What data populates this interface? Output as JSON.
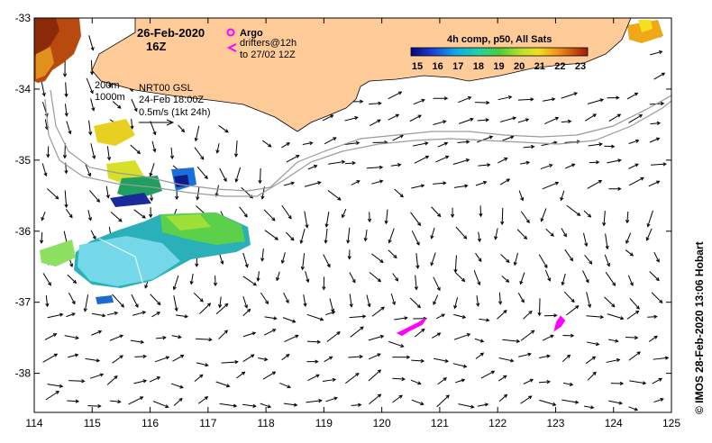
{
  "map": {
    "date": "26-Feb-2020",
    "time": "16Z",
    "isobath_labels": [
      "200m",
      "1000m"
    ],
    "current_product": "NRT00 GSL",
    "current_time": "24-Feb 18:00Z",
    "vector_scale": "0.5m/s (1kt 24h)",
    "legend": {
      "argo_label": "Argo",
      "drifters_label": "drifters@12h",
      "drifters_range": "to 27/02 12Z",
      "argo_color": "#ff00ff"
    },
    "sst_colorbar": {
      "title": "4h comp, p50, All Sats",
      "ticks": [
        15,
        16,
        17,
        18,
        19,
        20,
        21,
        22,
        23
      ]
    },
    "credit": "© IMOS 28-Feb-2020 13:06 Hobart",
    "land_color": "#ffcc99",
    "drifter_color": "#ff00ff"
  },
  "chart_data": {
    "type": "map",
    "x_ticks": [
      114,
      115,
      116,
      117,
      118,
      119,
      120,
      121,
      122,
      123,
      124,
      125
    ],
    "y_ticks": [
      -33,
      -34,
      -35,
      -36,
      -37,
      -38
    ],
    "xlim": [
      114,
      125
    ],
    "ylim": [
      -38.55,
      -33
    ]
  }
}
